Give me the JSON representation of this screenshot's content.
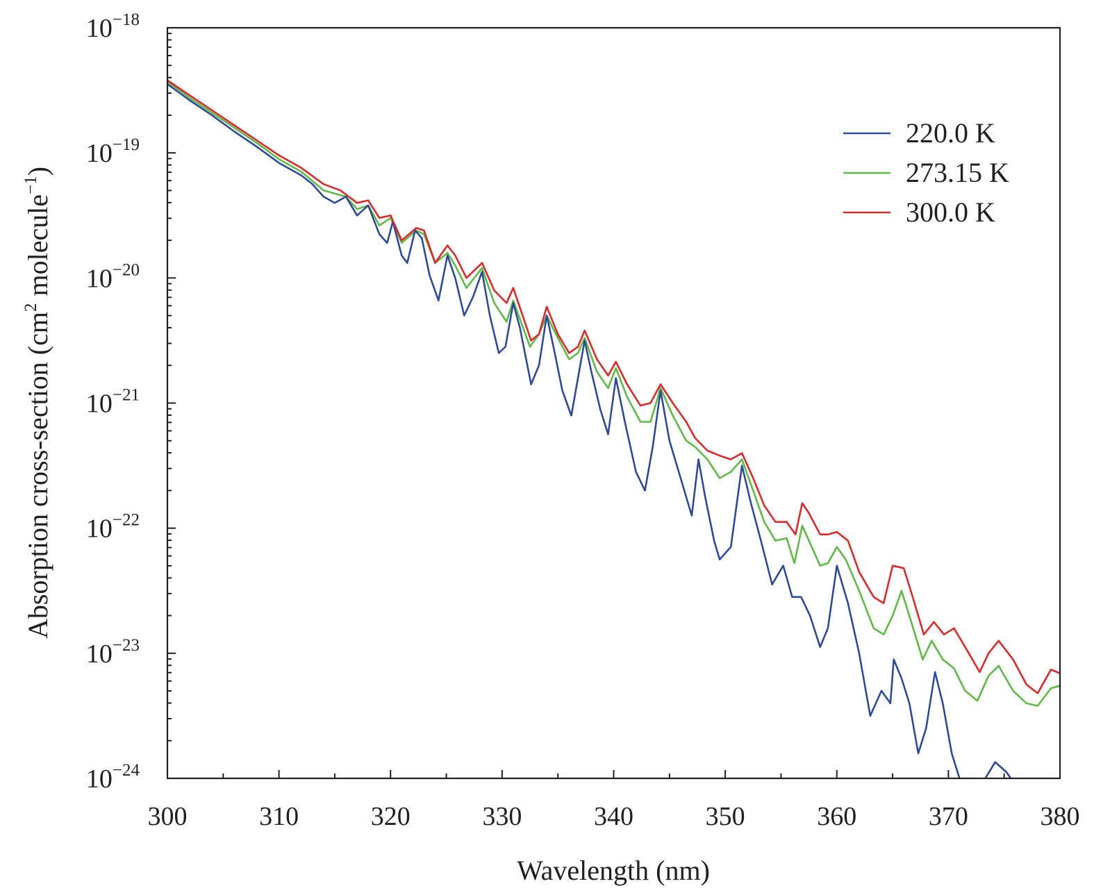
{
  "chart_data": {
    "type": "line",
    "title": "",
    "xlabel": "Wavelength (nm)",
    "ylabel_prefix": "Absorption cross-section (cm",
    "ylabel_sup1": "2",
    "ylabel_middle": " molecule",
    "ylabel_sup2": "−1",
    "ylabel_suffix": ")",
    "xlim": [
      300,
      380
    ],
    "ylim_log10": [
      -24,
      -18
    ],
    "y_scale": "log",
    "grid": false,
    "legend_position": "top-right",
    "x_ticks": [
      {
        "value": 300,
        "label": "300"
      },
      {
        "value": 310,
        "label": "310"
      },
      {
        "value": 320,
        "label": "320"
      },
      {
        "value": 330,
        "label": "330"
      },
      {
        "value": 340,
        "label": "340"
      },
      {
        "value": 350,
        "label": "350"
      },
      {
        "value": 360,
        "label": "360"
      },
      {
        "value": 370,
        "label": "370"
      },
      {
        "value": 380,
        "label": "380"
      }
    ],
    "y_ticks": [
      {
        "exp": -18,
        "base": "10",
        "sup": "−18"
      },
      {
        "exp": -19,
        "base": "10",
        "sup": "−19"
      },
      {
        "exp": -20,
        "base": "10",
        "sup": "−20"
      },
      {
        "exp": -21,
        "base": "10",
        "sup": "−21"
      },
      {
        "exp": -22,
        "base": "10",
        "sup": "−22"
      },
      {
        "exp": -23,
        "base": "10",
        "sup": "−23"
      },
      {
        "exp": -24,
        "base": "10",
        "sup": "−24"
      }
    ],
    "series": [
      {
        "name": "220.0 K",
        "color": "#2e4a9e",
        "log10_y": true,
        "points": [
          [
            300,
            -18.45
          ],
          [
            302,
            -18.58
          ],
          [
            304,
            -18.7
          ],
          [
            306,
            -18.83
          ],
          [
            308,
            -18.95
          ],
          [
            310,
            -19.08
          ],
          [
            312,
            -19.18
          ],
          [
            313,
            -19.25
          ],
          [
            314,
            -19.35
          ],
          [
            315,
            -19.4
          ],
          [
            316,
            -19.35
          ],
          [
            317,
            -19.5
          ],
          [
            318,
            -19.42
          ],
          [
            319,
            -19.65
          ],
          [
            319.7,
            -19.72
          ],
          [
            320.2,
            -19.55
          ],
          [
            321,
            -19.82
          ],
          [
            321.5,
            -19.88
          ],
          [
            322.2,
            -19.62
          ],
          [
            322.8,
            -19.68
          ],
          [
            323.5,
            -19.98
          ],
          [
            324.3,
            -20.18
          ],
          [
            325.1,
            -19.82
          ],
          [
            325.8,
            -20.0
          ],
          [
            326.6,
            -20.3
          ],
          [
            327.4,
            -20.15
          ],
          [
            328.2,
            -19.95
          ],
          [
            328.9,
            -20.3
          ],
          [
            329.7,
            -20.6
          ],
          [
            330.3,
            -20.55
          ],
          [
            331.0,
            -20.2
          ],
          [
            331.6,
            -20.4
          ],
          [
            332.6,
            -20.85
          ],
          [
            333.3,
            -20.7
          ],
          [
            334.0,
            -20.3
          ],
          [
            334.6,
            -20.55
          ],
          [
            335.4,
            -20.9
          ],
          [
            336.2,
            -21.1
          ],
          [
            336.8,
            -20.8
          ],
          [
            337.4,
            -20.5
          ],
          [
            338.0,
            -20.75
          ],
          [
            338.8,
            -21.05
          ],
          [
            339.5,
            -21.25
          ],
          [
            340.2,
            -20.8
          ],
          [
            341.0,
            -21.15
          ],
          [
            342.0,
            -21.55
          ],
          [
            342.8,
            -21.7
          ],
          [
            343.5,
            -21.35
          ],
          [
            344.2,
            -20.9
          ],
          [
            345.0,
            -21.3
          ],
          [
            346.0,
            -21.6
          ],
          [
            347.0,
            -21.9
          ],
          [
            347.6,
            -21.45
          ],
          [
            348.2,
            -21.75
          ],
          [
            349.0,
            -22.1
          ],
          [
            349.5,
            -22.25
          ],
          [
            350.5,
            -22.15
          ],
          [
            351.5,
            -21.5
          ],
          [
            352.3,
            -21.8
          ],
          [
            353.2,
            -22.1
          ],
          [
            354.2,
            -22.45
          ],
          [
            355.2,
            -22.3
          ],
          [
            356.0,
            -22.55
          ],
          [
            356.8,
            -22.55
          ],
          [
            357.6,
            -22.7
          ],
          [
            358.5,
            -22.95
          ],
          [
            359.2,
            -22.8
          ],
          [
            360.0,
            -22.3
          ],
          [
            361.0,
            -22.6
          ],
          [
            362.0,
            -23.0
          ],
          [
            363.0,
            -23.5
          ],
          [
            364.0,
            -23.3
          ],
          [
            364.8,
            -23.4
          ],
          [
            365.1,
            -23.05
          ],
          [
            365.8,
            -23.2
          ],
          [
            366.5,
            -23.4
          ],
          [
            367.3,
            -23.8
          ],
          [
            368.0,
            -23.6
          ],
          [
            368.8,
            -23.15
          ],
          [
            369.5,
            -23.4
          ],
          [
            370.3,
            -23.8
          ],
          [
            371.0,
            -24.0
          ],
          [
            371.01,
            null
          ],
          [
            373.2,
            null
          ],
          [
            373.3,
            -24.0
          ],
          [
            374.2,
            -23.87
          ],
          [
            375.2,
            -23.95
          ],
          [
            375.6,
            -24.0
          ]
        ]
      },
      {
        "name": "273.15 K",
        "color": "#5dbb46",
        "log10_y": true,
        "points": [
          [
            300,
            -18.43
          ],
          [
            302,
            -18.56
          ],
          [
            304,
            -18.68
          ],
          [
            306,
            -18.8
          ],
          [
            308,
            -18.92
          ],
          [
            310,
            -19.05
          ],
          [
            312,
            -19.15
          ],
          [
            314,
            -19.3
          ],
          [
            316,
            -19.35
          ],
          [
            317,
            -19.45
          ],
          [
            318,
            -19.42
          ],
          [
            319,
            -19.58
          ],
          [
            320,
            -19.52
          ],
          [
            321,
            -19.72
          ],
          [
            322.3,
            -19.62
          ],
          [
            323,
            -19.65
          ],
          [
            324,
            -19.88
          ],
          [
            325.1,
            -19.8
          ],
          [
            325.8,
            -19.9
          ],
          [
            326.8,
            -20.08
          ],
          [
            328.2,
            -19.92
          ],
          [
            329.3,
            -20.2
          ],
          [
            330.4,
            -20.35
          ],
          [
            331.0,
            -20.18
          ],
          [
            332.5,
            -20.55
          ],
          [
            333.3,
            -20.45
          ],
          [
            334.0,
            -20.3
          ],
          [
            335.0,
            -20.48
          ],
          [
            336.0,
            -20.65
          ],
          [
            336.8,
            -20.6
          ],
          [
            337.4,
            -20.48
          ],
          [
            338.5,
            -20.75
          ],
          [
            339.5,
            -20.88
          ],
          [
            340.2,
            -20.72
          ],
          [
            341.2,
            -20.95
          ],
          [
            342.4,
            -21.15
          ],
          [
            343.3,
            -21.15
          ],
          [
            344.2,
            -20.88
          ],
          [
            345.3,
            -21.1
          ],
          [
            346.5,
            -21.3
          ],
          [
            347.3,
            -21.35
          ],
          [
            348.4,
            -21.45
          ],
          [
            349.5,
            -21.6
          ],
          [
            350.5,
            -21.55
          ],
          [
            351.5,
            -21.45
          ],
          [
            352.5,
            -21.7
          ],
          [
            353.5,
            -21.95
          ],
          [
            354.5,
            -22.1
          ],
          [
            355.5,
            -22.08
          ],
          [
            356.2,
            -22.28
          ],
          [
            356.9,
            -21.98
          ],
          [
            357.5,
            -22.1
          ],
          [
            358.5,
            -22.3
          ],
          [
            359.2,
            -22.28
          ],
          [
            360.0,
            -22.15
          ],
          [
            360.8,
            -22.25
          ],
          [
            362.0,
            -22.5
          ],
          [
            363.3,
            -22.8
          ],
          [
            364.2,
            -22.85
          ],
          [
            365.0,
            -22.7
          ],
          [
            365.8,
            -22.5
          ],
          [
            366.5,
            -22.7
          ],
          [
            367.7,
            -23.05
          ],
          [
            368.5,
            -22.9
          ],
          [
            369.5,
            -23.05
          ],
          [
            370.5,
            -23.12
          ],
          [
            371.5,
            -23.3
          ],
          [
            372.6,
            -23.38
          ],
          [
            373.6,
            -23.18
          ],
          [
            374.5,
            -23.1
          ],
          [
            375.8,
            -23.3
          ],
          [
            377.0,
            -23.4
          ],
          [
            378.0,
            -23.42
          ],
          [
            379.2,
            -23.28
          ],
          [
            380,
            -23.26
          ]
        ]
      },
      {
        "name": "300.0 K",
        "color": "#e02828",
        "log10_y": true,
        "points": [
          [
            300,
            -18.42
          ],
          [
            302,
            -18.54
          ],
          [
            304,
            -18.66
          ],
          [
            306,
            -18.78
          ],
          [
            308,
            -18.9
          ],
          [
            310,
            -19.02
          ],
          [
            312,
            -19.12
          ],
          [
            314,
            -19.25
          ],
          [
            315.5,
            -19.3
          ],
          [
            317,
            -19.4
          ],
          [
            318,
            -19.38
          ],
          [
            319,
            -19.52
          ],
          [
            320,
            -19.5
          ],
          [
            321,
            -19.7
          ],
          [
            322.3,
            -19.6
          ],
          [
            323,
            -19.62
          ],
          [
            324,
            -19.88
          ],
          [
            325.1,
            -19.74
          ],
          [
            325.8,
            -19.82
          ],
          [
            326.8,
            -20.0
          ],
          [
            328.2,
            -19.88
          ],
          [
            329.3,
            -20.1
          ],
          [
            330.4,
            -20.2
          ],
          [
            331.0,
            -20.08
          ],
          [
            332.6,
            -20.5
          ],
          [
            333.3,
            -20.45
          ],
          [
            334.0,
            -20.23
          ],
          [
            335.0,
            -20.45
          ],
          [
            336.0,
            -20.6
          ],
          [
            336.8,
            -20.55
          ],
          [
            337.4,
            -20.42
          ],
          [
            338.5,
            -20.65
          ],
          [
            339.5,
            -20.78
          ],
          [
            340.2,
            -20.67
          ],
          [
            341.2,
            -20.85
          ],
          [
            342.4,
            -21.02
          ],
          [
            343.3,
            -21.0
          ],
          [
            344.2,
            -20.85
          ],
          [
            345.3,
            -21.0
          ],
          [
            346.5,
            -21.15
          ],
          [
            347.3,
            -21.28
          ],
          [
            348.4,
            -21.38
          ],
          [
            349.5,
            -21.42
          ],
          [
            350.5,
            -21.45
          ],
          [
            351.5,
            -21.4
          ],
          [
            352.5,
            -21.6
          ],
          [
            353.5,
            -21.82
          ],
          [
            354.5,
            -21.95
          ],
          [
            355.5,
            -21.95
          ],
          [
            356.3,
            -22.05
          ],
          [
            356.9,
            -21.8
          ],
          [
            357.5,
            -21.88
          ],
          [
            358.5,
            -22.05
          ],
          [
            359.2,
            -22.05
          ],
          [
            360.0,
            -22.03
          ],
          [
            361.0,
            -22.1
          ],
          [
            362.0,
            -22.35
          ],
          [
            363.3,
            -22.55
          ],
          [
            364.2,
            -22.6
          ],
          [
            365.0,
            -22.3
          ],
          [
            366.0,
            -22.32
          ],
          [
            366.8,
            -22.55
          ],
          [
            367.8,
            -22.85
          ],
          [
            368.7,
            -22.75
          ],
          [
            369.6,
            -22.85
          ],
          [
            370.5,
            -22.8
          ],
          [
            371.5,
            -22.95
          ],
          [
            372.8,
            -23.15
          ],
          [
            373.6,
            -23.0
          ],
          [
            374.5,
            -22.9
          ],
          [
            375.8,
            -23.05
          ],
          [
            377.0,
            -23.25
          ],
          [
            378.0,
            -23.32
          ],
          [
            379.2,
            -23.13
          ],
          [
            380,
            -23.16
          ]
        ]
      }
    ]
  }
}
